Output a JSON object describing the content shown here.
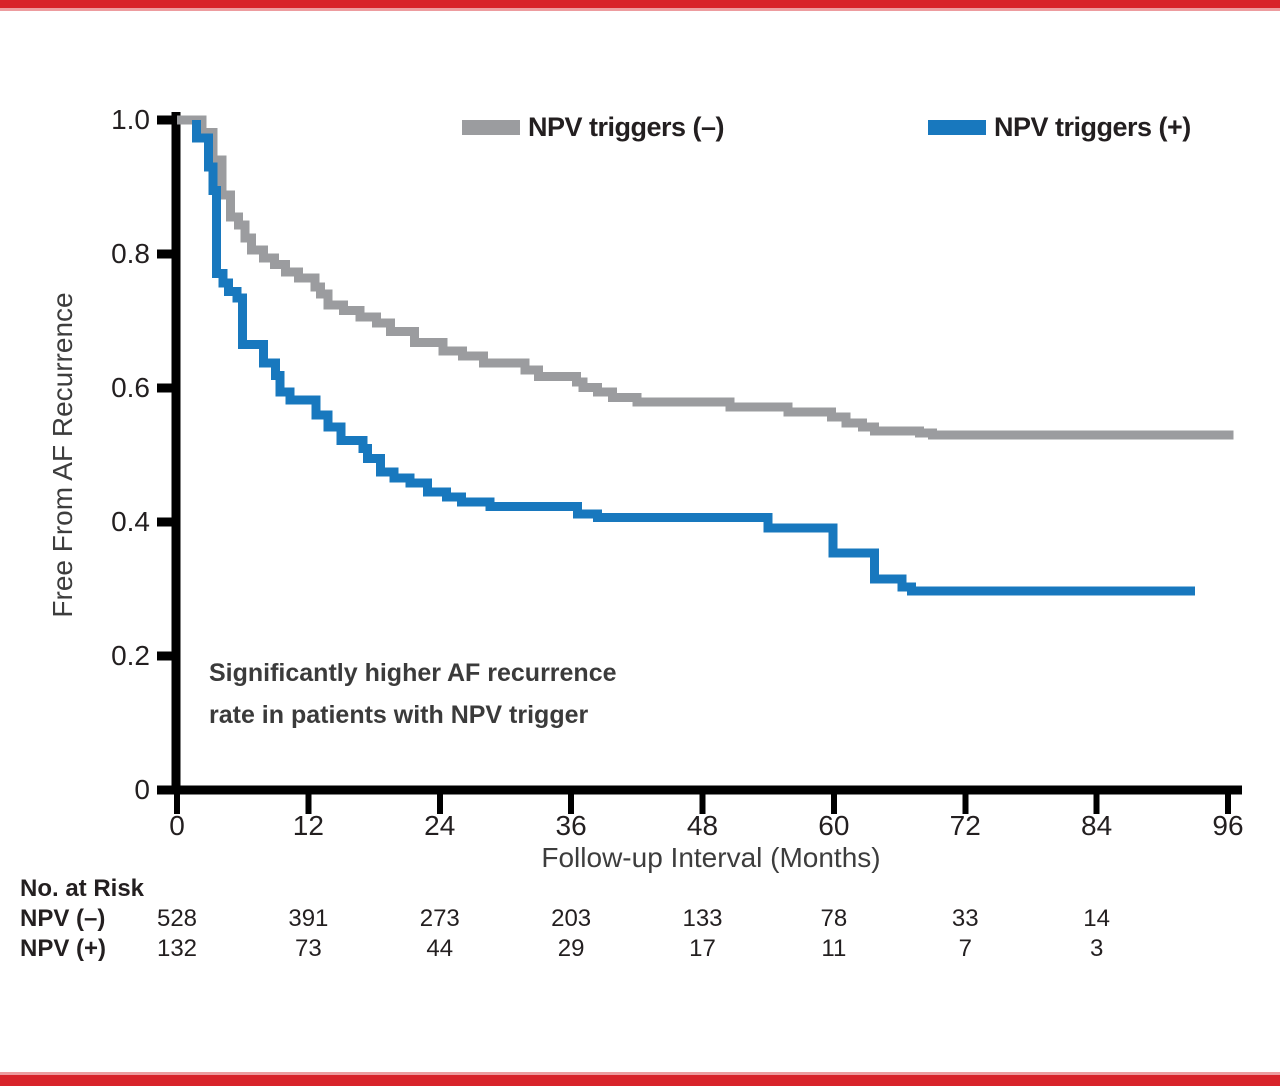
{
  "page": {
    "background": "#ffffff",
    "accent_bar_color": "#d8232a"
  },
  "chart_data": {
    "type": "line",
    "subtype": "kaplan-meier-step-curves",
    "title": "",
    "xlabel": "Follow-up Interval (Months)",
    "ylabel": "Free From AF Recurrence",
    "xlim": [
      0,
      96
    ],
    "ylim": [
      0,
      1.0
    ],
    "xticks": [
      0,
      12,
      24,
      36,
      48,
      60,
      72,
      84,
      96
    ],
    "ytick_labels": [
      "1.0",
      "0.8",
      "0.6",
      "0.4",
      "0.2",
      "0"
    ],
    "ytick_values": [
      1.0,
      0.8,
      0.6,
      0.4,
      0.2,
      0
    ],
    "grid": false,
    "legend_position": "top",
    "axis_color": "#000000",
    "annotation": {
      "line1": "Significantly higher AF recurrence",
      "line2": "rate in patients with NPV trigger"
    },
    "series": [
      {
        "name": "NPV triggers (–)",
        "color": "#9b9c9f",
        "end_month": 96.5,
        "points": [
          [
            0,
            1.0
          ],
          [
            2.3,
            0.981
          ],
          [
            3.3,
            0.94
          ],
          [
            4.1,
            0.888
          ],
          [
            4.9,
            0.855
          ],
          [
            5.6,
            0.843
          ],
          [
            6.2,
            0.824
          ],
          [
            6.8,
            0.806
          ],
          [
            7.9,
            0.794
          ],
          [
            8.9,
            0.784
          ],
          [
            9.9,
            0.773
          ],
          [
            11.1,
            0.764
          ],
          [
            12.6,
            0.751
          ],
          [
            13.1,
            0.74
          ],
          [
            13.8,
            0.724
          ],
          [
            15.2,
            0.716
          ],
          [
            16.7,
            0.706
          ],
          [
            18.2,
            0.697
          ],
          [
            19.5,
            0.684
          ],
          [
            21.7,
            0.668
          ],
          [
            24.3,
            0.655
          ],
          [
            26.1,
            0.648
          ],
          [
            28.0,
            0.637
          ],
          [
            31.8,
            0.627
          ],
          [
            33.0,
            0.617
          ],
          [
            36.5,
            0.609
          ],
          [
            37.1,
            0.601
          ],
          [
            38.4,
            0.594
          ],
          [
            39.8,
            0.586
          ],
          [
            42.0,
            0.579
          ],
          [
            50.5,
            0.572
          ],
          [
            55.8,
            0.564
          ],
          [
            59.8,
            0.557
          ],
          [
            61.1,
            0.548
          ],
          [
            62.6,
            0.542
          ],
          [
            63.7,
            0.536
          ],
          [
            67.8,
            0.533
          ],
          [
            69.0,
            0.53
          ]
        ]
      },
      {
        "name": "NPV triggers (+)",
        "color": "#1878be",
        "end_month": 93,
        "points": [
          [
            1.8,
            1.0
          ],
          [
            1.8,
            0.973
          ],
          [
            2.9,
            0.93
          ],
          [
            3.3,
            0.895
          ],
          [
            3.6,
            0.771
          ],
          [
            4.2,
            0.757
          ],
          [
            4.7,
            0.744
          ],
          [
            5.5,
            0.734
          ],
          [
            6.0,
            0.665
          ],
          [
            7.9,
            0.637
          ],
          [
            9.0,
            0.619
          ],
          [
            9.4,
            0.594
          ],
          [
            10.3,
            0.582
          ],
          [
            12.7,
            0.56
          ],
          [
            13.8,
            0.542
          ],
          [
            15.0,
            0.522
          ],
          [
            17.0,
            0.51
          ],
          [
            17.4,
            0.495
          ],
          [
            18.6,
            0.475
          ],
          [
            19.8,
            0.466
          ],
          [
            21.3,
            0.458
          ],
          [
            22.9,
            0.445
          ],
          [
            24.6,
            0.437
          ],
          [
            26.0,
            0.43
          ],
          [
            28.6,
            0.423
          ],
          [
            36.6,
            0.412
          ],
          [
            38.4,
            0.407
          ],
          [
            54.0,
            0.391
          ],
          [
            59.9,
            0.354
          ],
          [
            63.7,
            0.315
          ],
          [
            66.2,
            0.303
          ],
          [
            67.1,
            0.297
          ]
        ]
      }
    ],
    "risk_table": {
      "title": "No. at Risk",
      "months": [
        0,
        12,
        24,
        36,
        48,
        60,
        72,
        84
      ],
      "rows": [
        {
          "label": "NPV (–)",
          "values": [
            528,
            391,
            273,
            203,
            133,
            78,
            33,
            14
          ]
        },
        {
          "label": "NPV (+)",
          "values": [
            132,
            73,
            44,
            29,
            17,
            11,
            7,
            3
          ]
        }
      ]
    }
  }
}
